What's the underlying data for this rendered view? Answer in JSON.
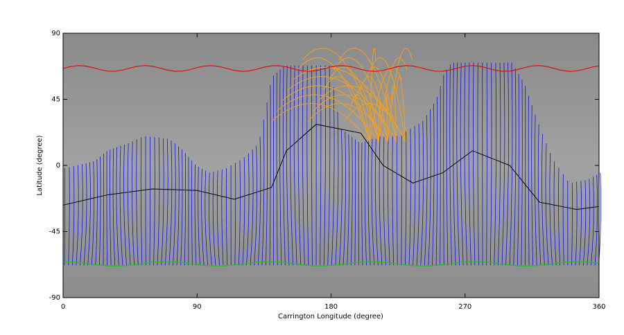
{
  "chart_data": {
    "type": "synoptic-map",
    "x_label": "Carrington Longitude (degree)",
    "y_label": "Latitude (degree)",
    "xlim": [
      0,
      360
    ],
    "ylim": [
      -90,
      90
    ],
    "xticks": [
      0,
      90,
      180,
      270,
      360
    ],
    "yticks": [
      -90,
      -45,
      0,
      45,
      90
    ]
  }
}
